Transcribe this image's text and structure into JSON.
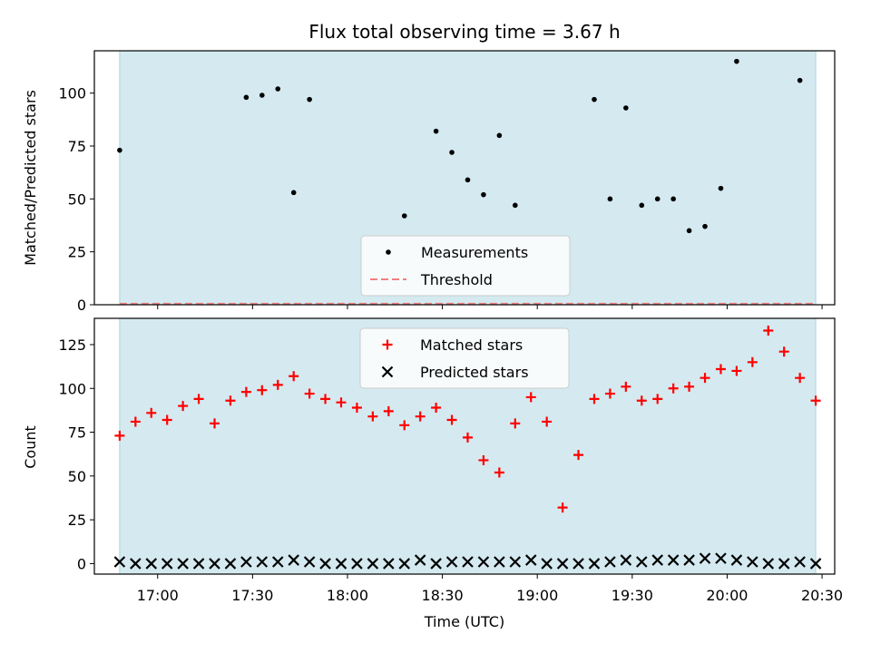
{
  "chart_data": {
    "title": "Flux total observing time = 3.67 h",
    "xlabel": "Time (UTC)",
    "x_ticks": [
      "17:00",
      "17:30",
      "18:00",
      "18:30",
      "19:00",
      "19:30",
      "20:00",
      "20:30"
    ],
    "xlim": [
      "16:40",
      "20:34"
    ],
    "shaded_interval": [
      "16:48",
      "20:28"
    ],
    "shade_color": "#d4eaf0",
    "panels": [
      {
        "type": "scatter",
        "ylabel": "Matched/Predicted stars",
        "ylim": [
          0,
          120
        ],
        "yticks": [
          0,
          25,
          50,
          75,
          100
        ],
        "legend_position": "lower-center",
        "series": [
          {
            "name": "Measurements",
            "marker": "dot",
            "color": "#000000",
            "points": [
              {
                "x": "16:48",
                "y": 73
              },
              {
                "x": "17:28",
                "y": 98
              },
              {
                "x": "17:33",
                "y": 99
              },
              {
                "x": "17:38",
                "y": 102
              },
              {
                "x": "17:43",
                "y": 53
              },
              {
                "x": "17:48",
                "y": 97
              },
              {
                "x": "18:18",
                "y": 42
              },
              {
                "x": "18:28",
                "y": 82
              },
              {
                "x": "18:33",
                "y": 72
              },
              {
                "x": "18:38",
                "y": 59
              },
              {
                "x": "18:43",
                "y": 52
              },
              {
                "x": "18:48",
                "y": 80
              },
              {
                "x": "18:53",
                "y": 47
              },
              {
                "x": "19:18",
                "y": 97
              },
              {
                "x": "19:23",
                "y": 50
              },
              {
                "x": "19:28",
                "y": 93
              },
              {
                "x": "19:33",
                "y": 47
              },
              {
                "x": "19:38",
                "y": 50
              },
              {
                "x": "19:43",
                "y": 50
              },
              {
                "x": "19:48",
                "y": 35
              },
              {
                "x": "19:53",
                "y": 37
              },
              {
                "x": "19:58",
                "y": 55
              },
              {
                "x": "20:03",
                "y": 115
              },
              {
                "x": "20:23",
                "y": 106
              }
            ]
          },
          {
            "name": "Threshold",
            "marker": "dashed-line",
            "color": "#f08080",
            "y": 0.5
          }
        ]
      },
      {
        "type": "scatter",
        "ylabel": "Count",
        "ylim": [
          -6,
          140
        ],
        "yticks": [
          0,
          25,
          50,
          75,
          100,
          125
        ],
        "legend_position": "upper-center",
        "x": [
          "16:48",
          "16:53",
          "16:58",
          "17:03",
          "17:08",
          "17:13",
          "17:18",
          "17:23",
          "17:28",
          "17:33",
          "17:38",
          "17:43",
          "17:48",
          "17:53",
          "17:58",
          "18:03",
          "18:08",
          "18:13",
          "18:18",
          "18:23",
          "18:28",
          "18:33",
          "18:38",
          "18:43",
          "18:48",
          "18:53",
          "18:58",
          "19:03",
          "19:08",
          "19:13",
          "19:18",
          "19:23",
          "19:28",
          "19:33",
          "19:38",
          "19:43",
          "19:48",
          "19:53",
          "19:58",
          "20:03",
          "20:08",
          "20:13",
          "20:18",
          "20:23",
          "20:28"
        ],
        "series": [
          {
            "name": "Matched stars",
            "marker": "plus",
            "color": "#ff0000",
            "values": [
              73,
              81,
              86,
              82,
              90,
              94,
              80,
              93,
              98,
              99,
              102,
              107,
              97,
              94,
              92,
              89,
              84,
              87,
              79,
              84,
              89,
              82,
              72,
              59,
              52,
              80,
              95,
              81,
              32,
              62,
              94,
              97,
              101,
              93,
              94,
              100,
              101,
              106,
              111,
              110,
              115,
              133,
              121,
              106,
              93
            ]
          },
          {
            "name": "Predicted stars",
            "marker": "x",
            "color": "#000000",
            "values": [
              1,
              0,
              0,
              0,
              0,
              0,
              0,
              0,
              1,
              1,
              1,
              2,
              1,
              0,
              0,
              0,
              0,
              0,
              0,
              2,
              0,
              1,
              1,
              1,
              1,
              1,
              2,
              0,
              0,
              0,
              0,
              1,
              2,
              1,
              2,
              2,
              2,
              3,
              3,
              2,
              1,
              0,
              0,
              1,
              0
            ]
          }
        ]
      }
    ]
  }
}
